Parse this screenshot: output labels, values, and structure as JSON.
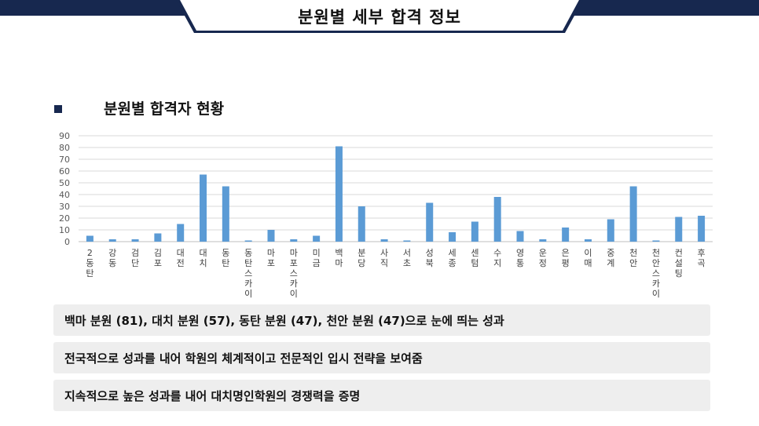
{
  "header": {
    "title": "분원별 세부 합격 정보"
  },
  "section": {
    "title": "분원별 합격자 현황"
  },
  "chart_data": {
    "type": "bar",
    "title": "",
    "xlabel": "",
    "ylabel": "",
    "ylim": [
      0,
      90
    ],
    "yticks": [
      0,
      10,
      20,
      30,
      40,
      50,
      60,
      70,
      80,
      90
    ],
    "grid": true,
    "bar_color": "#5b9bd5",
    "categories": [
      "2동탄",
      "강동",
      "검단",
      "김포",
      "대전",
      "대치",
      "동탄",
      "동탄스카이",
      "마포",
      "마포스카이",
      "미금",
      "백마",
      "분당",
      "사직",
      "서초",
      "성북",
      "세종",
      "센텀",
      "수지",
      "영통",
      "운정",
      "은평",
      "이매",
      "중계",
      "천안",
      "천안스카이",
      "컨설팅",
      "후곡"
    ],
    "values": [
      5,
      2,
      2,
      7,
      15,
      57,
      47,
      1,
      10,
      2,
      5,
      81,
      30,
      2,
      1,
      33,
      8,
      17,
      38,
      9,
      2,
      12,
      2,
      19,
      47,
      1,
      21,
      22
    ]
  },
  "summary": [
    "백마 분원 (81), 대치 분원 (57), 동탄 분원 (47), 천안 분원 (47)으로 눈에 띄는 성과",
    "전국적으로 성과를 내어 학원의 체계적이고 전문적인 입시 전략을 보여줌",
    "지속적으로 높은 성과를 내어 대치명인학원의 경쟁력을 증명"
  ],
  "colors": {
    "navy": "#17284f",
    "bar": "#5b9bd5",
    "box": "#eeeeee"
  }
}
